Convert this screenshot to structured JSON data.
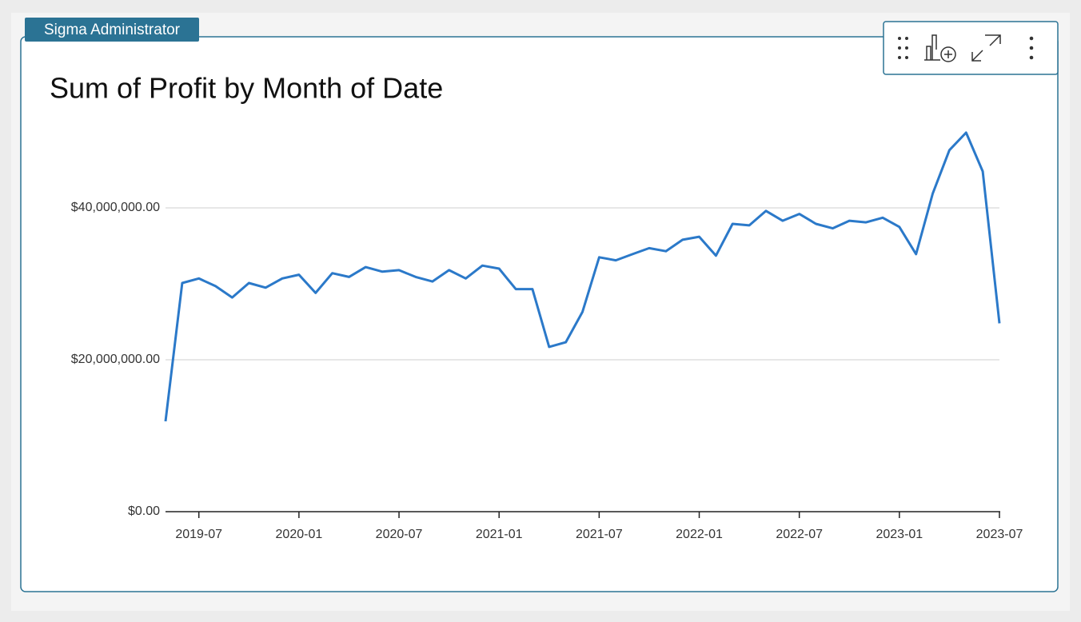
{
  "header": {
    "tag": "Sigma Administrator"
  },
  "chart_data": {
    "type": "line",
    "title": "Sum of Profit by Month of Date",
    "color": "#2b79c9",
    "grid": true,
    "x": [
      "2019-05",
      "2019-06",
      "2019-07",
      "2019-08",
      "2019-09",
      "2019-10",
      "2019-11",
      "2019-12",
      "2020-01",
      "2020-02",
      "2020-03",
      "2020-04",
      "2020-05",
      "2020-06",
      "2020-07",
      "2020-08",
      "2020-09",
      "2020-10",
      "2020-11",
      "2020-12",
      "2021-01",
      "2021-02",
      "2021-03",
      "2021-04",
      "2021-05",
      "2021-06",
      "2021-07",
      "2021-08",
      "2021-09",
      "2021-10",
      "2021-11",
      "2021-12",
      "2022-01",
      "2022-02",
      "2022-03",
      "2022-04",
      "2022-05",
      "2022-06",
      "2022-07",
      "2022-08",
      "2022-09",
      "2022-10",
      "2022-11",
      "2022-12",
      "2023-01",
      "2023-02",
      "2023-03",
      "2023-04",
      "2023-05",
      "2023-06",
      "2023-07"
    ],
    "values": [
      11900000,
      30100000,
      30700000,
      29700000,
      28200000,
      30100000,
      29500000,
      30700000,
      31200000,
      28800000,
      31400000,
      30900000,
      32200000,
      31600000,
      31800000,
      30900000,
      30300000,
      31800000,
      30700000,
      32400000,
      32000000,
      29300000,
      29300000,
      21700000,
      22300000,
      26300000,
      33500000,
      33100000,
      33900000,
      34700000,
      34300000,
      35800000,
      36200000,
      33700000,
      37900000,
      37700000,
      39600000,
      38300000,
      39200000,
      37900000,
      37300000,
      38300000,
      38100000,
      38700000,
      37500000,
      33900000,
      41900000,
      47600000,
      49900000,
      44800000,
      24800000
    ],
    "xlim": [
      "2019-05",
      "2023-07"
    ],
    "xticks": [
      "2019-07",
      "2020-01",
      "2020-07",
      "2021-01",
      "2021-07",
      "2022-01",
      "2022-07",
      "2023-01",
      "2023-07"
    ],
    "ylim": [
      0,
      52000000
    ],
    "yticks": [
      {
        "value": 0,
        "label": "$0.00"
      },
      {
        "value": 20000000,
        "label": "$20,000,000.00"
      },
      {
        "value": 40000000,
        "label": "$40,000,000.00"
      }
    ]
  }
}
